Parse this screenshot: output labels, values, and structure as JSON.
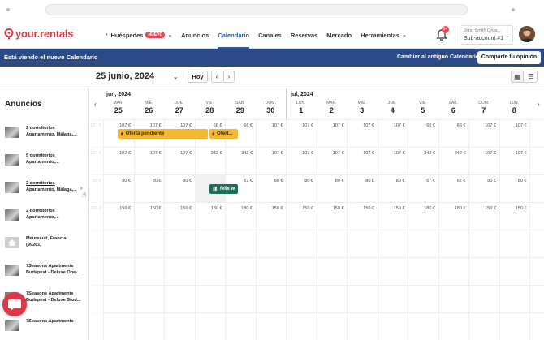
{
  "header": {
    "logo_text": "your.rentals",
    "nav": [
      {
        "label": "Huéspedes",
        "badge": "NUEVO",
        "dropdown": true
      },
      {
        "label": "Anuncios"
      },
      {
        "label": "Calendario",
        "active": true
      },
      {
        "label": "Canales"
      },
      {
        "label": "Reservas"
      },
      {
        "label": "Mercado"
      },
      {
        "label": "Herramientas",
        "dropdown": true
      }
    ],
    "notifications_count": "9+",
    "account_name": "John Smith Orga...",
    "account_sub": "Sub-account #1"
  },
  "banner": {
    "text": "Está viendo el nuevo Calendario",
    "link": "Cambiar al antiguo Calendario",
    "button": "Comparte tu opinión"
  },
  "toolbar": {
    "current_date": "25 junio, 2024",
    "today_button": "Hoy"
  },
  "calendar": {
    "section_title": "Anuncios",
    "months": [
      "jun, 2024",
      "jul, 2024"
    ],
    "days": [
      {
        "dow": "MAR.",
        "num": "25"
      },
      {
        "dow": "MIÉ.",
        "num": "26"
      },
      {
        "dow": "JUE.",
        "num": "27"
      },
      {
        "dow": "VIE.",
        "num": "28"
      },
      {
        "dow": "SÁB.",
        "num": "29"
      },
      {
        "dow": "DOM.",
        "num": "30"
      },
      {
        "dow": "LUN.",
        "num": "1"
      },
      {
        "dow": "MAR.",
        "num": "2"
      },
      {
        "dow": "MIÉ.",
        "num": "3"
      },
      {
        "dow": "JUE.",
        "num": "4"
      },
      {
        "dow": "VIE.",
        "num": "5"
      },
      {
        "dow": "SÁB.",
        "num": "6"
      },
      {
        "dow": "DOM.",
        "num": "7"
      },
      {
        "dow": "LUN.",
        "num": "8"
      }
    ],
    "listings": [
      {
        "line1": "2 dormitorios",
        "line2": "Apartamento, Málaga,...",
        "prev": "107 €",
        "prices": [
          "107 €",
          "107 €",
          "107 €",
          "66 €",
          "66 €",
          "107 €",
          "107 €",
          "107 €",
          "107 €",
          "107 €",
          "66 €",
          "66 €",
          "107 €",
          "107 €"
        ]
      },
      {
        "line1": "5 dormitorios",
        "line2": "Apartamento,...",
        "prev": "107 €",
        "prices": [
          "107 €",
          "107 €",
          "107 €",
          "342 €",
          "342 €",
          "107 €",
          "107 €",
          "107 €",
          "107 €",
          "107 €",
          "342 €",
          "342 €",
          "107 €",
          "107 €"
        ]
      },
      {
        "line1": "2 dormitorios",
        "line2": "Apartamento, Málaga,...",
        "prev": "80 €",
        "prices": [
          "80 €",
          "80 €",
          "80 €",
          "",
          "67 €",
          "80 €",
          "80 €",
          "80 €",
          "80 €",
          "80 €",
          "67 €",
          "67 €",
          "80 €",
          "80 €"
        ]
      },
      {
        "line1": "2 dormitorios",
        "line2": "Apartamento,...",
        "prev": "150 €",
        "prices": [
          "150 €",
          "150 €",
          "150 €",
          "180 €",
          "180 €",
          "150 €",
          "150 €",
          "150 €",
          "150 €",
          "150 €",
          "180 €",
          "180 €",
          "150 €",
          "150 €"
        ]
      },
      {
        "line1": "Meursault, Francia",
        "line2": "(99261)",
        "prev": "",
        "prices": []
      },
      {
        "line1": "7Seasons Apartments",
        "line2": "Budapest - Deluxe One-...",
        "prev": "",
        "prices": []
      },
      {
        "line1": "7Seasons Apartments",
        "line2": "Budapest - Deluxe Stud...",
        "prev": "",
        "prices": []
      },
      {
        "line1": "7Seasons Apartments",
        "line2": "",
        "prev": "",
        "prices": []
      }
    ],
    "reservations": [
      {
        "label": "Oferta pendiente"
      },
      {
        "label": "Ofert..."
      },
      {
        "label": "felix w"
      }
    ]
  },
  "colors": {
    "brand": "#d93a48",
    "nav_active": "#2b5aa6",
    "banner": "#2c4a86",
    "pending": "#f5b731",
    "confirmed": "#1f6e5a"
  }
}
